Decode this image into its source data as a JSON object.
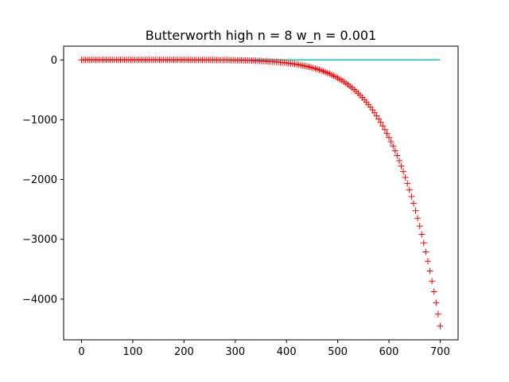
{
  "chart_data": {
    "type": "line",
    "title": "Butterworth high n = 8  w_n = 0.001",
    "xlabel": "",
    "ylabel": "",
    "xlim": [
      -35,
      735
    ],
    "ylim": [
      -4680,
      230
    ],
    "x_ticks": [
      0,
      100,
      200,
      300,
      400,
      500,
      600,
      700
    ],
    "x_tick_labels": [
      "0",
      "100",
      "200",
      "300",
      "400",
      "500",
      "600",
      "700"
    ],
    "y_ticks": [
      0,
      -1000,
      -2000,
      -3000,
      -4000
    ],
    "y_tick_labels": [
      "0",
      "−1000",
      "−2000",
      "−3000",
      "−4000"
    ],
    "grid": false,
    "series": [
      {
        "style": "line",
        "color": "#17becf",
        "x": [
          0,
          700
        ],
        "y": [
          0,
          0
        ]
      },
      {
        "style": "plus-markers",
        "color": "#ff0000",
        "x_start": 0,
        "x_end": 700,
        "x_step": 4,
        "curve_model": "y = a * x^p",
        "curve_params": {
          "a": -4450,
          "p": 8
        },
        "sample_points": [
          {
            "x": 0,
            "y": 0
          },
          {
            "x": 300,
            "y": -5
          },
          {
            "x": 400,
            "y": -50
          },
          {
            "x": 500,
            "y": -300
          },
          {
            "x": 600,
            "y": -1300
          },
          {
            "x": 650,
            "y": -2430
          },
          {
            "x": 700,
            "y": -4450
          }
        ]
      }
    ]
  },
  "colors": {
    "axes": "#000000",
    "background": "#ffffff"
  }
}
